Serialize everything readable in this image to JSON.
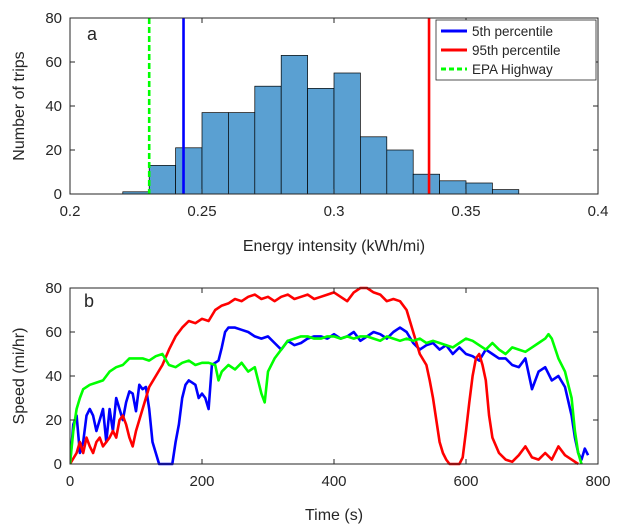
{
  "chart_data": [
    {
      "type": "bar",
      "panel_label": "a",
      "xlabel": "Energy intensity (kWh/mi)",
      "ylabel": "Number of trips",
      "xlim": [
        0.2,
        0.4
      ],
      "ylim": [
        0,
        80
      ],
      "xticks": [
        0.2,
        0.25,
        0.3,
        0.35,
        0.4
      ],
      "xtick_labels": [
        "0.2",
        "0.25",
        "0.3",
        "0.35",
        "0.4"
      ],
      "yticks": [
        0,
        20,
        40,
        60,
        80
      ],
      "ytick_labels": [
        "0",
        "20",
        "40",
        "60",
        "80"
      ],
      "bin_width": 0.01,
      "bin_starts": [
        0.22,
        0.23,
        0.24,
        0.25,
        0.26,
        0.27,
        0.28,
        0.29,
        0.3,
        0.31,
        0.32,
        0.33,
        0.34,
        0.35,
        0.36
      ],
      "values": [
        1,
        13,
        21,
        37,
        37,
        49,
        63,
        48,
        55,
        26,
        20,
        9,
        6,
        5,
        2
      ],
      "bar_color": "#5aa0d2",
      "grid": false,
      "legend_position": "top-right",
      "vertical_lines": [
        {
          "name": "5th percentile",
          "x": 0.243,
          "color": "#0000ff",
          "style": "solid"
        },
        {
          "name": "95th percentile",
          "x": 0.336,
          "color": "#ff0000",
          "style": "solid"
        },
        {
          "name": "EPA Highway",
          "x": 0.23,
          "color": "#00ff00",
          "style": "dashed"
        }
      ]
    },
    {
      "type": "line",
      "panel_label": "b",
      "xlabel": "Time (s)",
      "ylabel": "Speed (mi/hr)",
      "xlim": [
        0,
        800
      ],
      "ylim": [
        0,
        80
      ],
      "xticks": [
        0,
        200,
        400,
        600,
        800
      ],
      "xtick_labels": [
        "0",
        "200",
        "400",
        "600",
        "800"
      ],
      "yticks": [
        0,
        20,
        40,
        60,
        80
      ],
      "ytick_labels": [
        "0",
        "20",
        "40",
        "60",
        "80"
      ],
      "grid": false,
      "series": [
        {
          "color": "#0000ff",
          "x": [
            0,
            5,
            10,
            15,
            20,
            25,
            30,
            35,
            40,
            45,
            50,
            55,
            60,
            65,
            70,
            75,
            80,
            85,
            90,
            95,
            100,
            105,
            110,
            115,
            120,
            125,
            130,
            135,
            140,
            145,
            150,
            155,
            160,
            165,
            170,
            175,
            180,
            185,
            190,
            195,
            200,
            205,
            210,
            215,
            220,
            225,
            230,
            235,
            240,
            250,
            260,
            270,
            280,
            290,
            300,
            310,
            320,
            330,
            340,
            350,
            360,
            370,
            380,
            390,
            400,
            410,
            420,
            430,
            440,
            450,
            460,
            470,
            480,
            490,
            500,
            510,
            520,
            530,
            540,
            550,
            560,
            570,
            580,
            590,
            600,
            610,
            620,
            630,
            640,
            650,
            660,
            670,
            680,
            690,
            700,
            710,
            720,
            730,
            740,
            750,
            760,
            765,
            770,
            775,
            780,
            785
          ],
          "y": [
            0,
            18,
            22,
            5,
            10,
            22,
            25,
            22,
            15,
            20,
            25,
            10,
            25,
            15,
            30,
            25,
            20,
            28,
            33,
            32,
            24,
            36,
            34,
            35,
            25,
            10,
            5,
            0,
            0,
            0,
            0,
            0,
            10,
            18,
            30,
            36,
            38,
            37,
            36,
            30,
            32,
            30,
            25,
            45,
            46,
            47,
            53,
            60,
            62,
            62,
            61,
            60,
            58,
            57,
            58,
            55,
            52,
            56,
            54,
            55,
            57,
            58,
            58,
            57,
            59,
            57,
            58,
            60,
            56,
            58,
            60,
            59,
            57,
            60,
            62,
            60,
            55,
            52,
            54,
            55,
            52,
            54,
            50,
            53,
            50,
            49,
            47,
            52,
            50,
            48,
            48,
            45,
            44,
            48,
            34,
            42,
            44,
            38,
            40,
            35,
            22,
            12,
            5,
            2,
            7,
            4
          ]
        },
        {
          "color": "#ff0000",
          "x": [
            0,
            10,
            15,
            20,
            25,
            30,
            35,
            40,
            45,
            50,
            55,
            60,
            65,
            70,
            75,
            80,
            85,
            90,
            95,
            100,
            105,
            110,
            115,
            120,
            130,
            140,
            150,
            160,
            170,
            180,
            190,
            200,
            210,
            220,
            230,
            240,
            250,
            260,
            270,
            280,
            290,
            300,
            310,
            320,
            330,
            340,
            350,
            360,
            370,
            380,
            390,
            400,
            410,
            420,
            430,
            440,
            450,
            460,
            470,
            480,
            490,
            500,
            510,
            520,
            530,
            540,
            545,
            550,
            555,
            560,
            565,
            570,
            575,
            580,
            585,
            590,
            595,
            600,
            605,
            610,
            615,
            620,
            625,
            630,
            635,
            640,
            650,
            660,
            670,
            680,
            690,
            700,
            710,
            720,
            730,
            740,
            750,
            760,
            770
          ],
          "y": [
            0,
            5,
            10,
            5,
            12,
            8,
            5,
            10,
            12,
            8,
            10,
            12,
            15,
            12,
            20,
            22,
            18,
            12,
            8,
            15,
            20,
            25,
            30,
            35,
            40,
            45,
            52,
            58,
            62,
            65,
            64,
            66,
            65,
            70,
            72,
            73,
            75,
            74,
            76,
            77,
            75,
            76,
            74,
            76,
            77,
            75,
            76,
            77,
            75,
            76,
            77,
            78,
            76,
            74,
            78,
            80,
            80,
            78,
            77,
            74,
            75,
            74,
            70,
            60,
            50,
            45,
            38,
            30,
            20,
            10,
            5,
            2,
            0,
            0,
            0,
            0,
            3,
            15,
            28,
            40,
            48,
            50,
            45,
            38,
            22,
            12,
            5,
            2,
            1,
            4,
            8,
            3,
            2,
            5,
            2,
            8,
            4,
            2,
            0
          ]
        },
        {
          "color": "#00ff00",
          "x": [
            0,
            5,
            10,
            15,
            20,
            30,
            40,
            50,
            60,
            70,
            80,
            90,
            100,
            110,
            120,
            130,
            140,
            150,
            160,
            170,
            180,
            190,
            200,
            210,
            220,
            225,
            230,
            240,
            250,
            260,
            270,
            280,
            290,
            295,
            300,
            310,
            320,
            330,
            340,
            350,
            360,
            370,
            380,
            390,
            400,
            410,
            420,
            430,
            440,
            450,
            460,
            470,
            480,
            490,
            500,
            510,
            520,
            530,
            540,
            550,
            560,
            570,
            580,
            590,
            600,
            610,
            620,
            630,
            640,
            650,
            660,
            670,
            680,
            690,
            700,
            710,
            720,
            725,
            730,
            740,
            750,
            760,
            765,
            770,
            775
          ],
          "y": [
            0,
            15,
            25,
            30,
            34,
            36,
            37,
            38,
            42,
            44,
            45,
            48,
            48,
            48,
            47,
            49,
            50,
            45,
            44,
            46,
            47,
            45,
            46,
            46,
            45,
            38,
            42,
            45,
            43,
            46,
            42,
            44,
            32,
            28,
            42,
            48,
            52,
            56,
            57,
            58,
            58,
            57,
            57,
            58,
            58,
            57,
            58,
            57,
            58,
            58,
            57,
            56,
            58,
            57,
            56,
            57,
            56,
            57,
            55,
            56,
            55,
            54,
            53,
            55,
            57,
            56,
            54,
            52,
            55,
            52,
            50,
            53,
            52,
            51,
            53,
            55,
            57,
            59,
            57,
            48,
            42,
            30,
            15,
            5,
            0
          ]
        }
      ]
    }
  ]
}
